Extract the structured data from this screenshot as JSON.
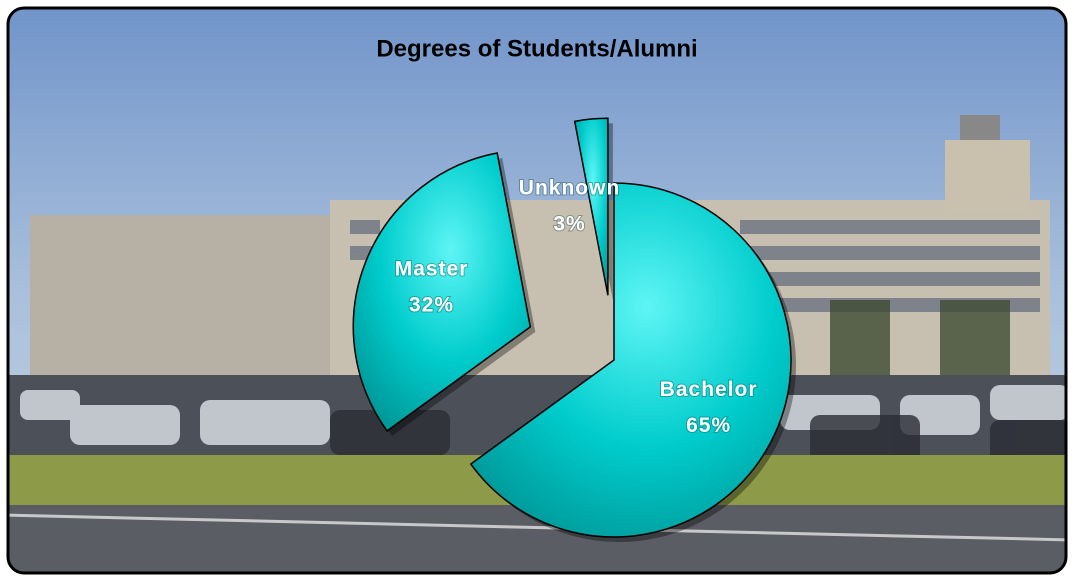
{
  "chart_data": {
    "type": "pie",
    "title": "Degrees of Students/Alumni",
    "categories": [
      "Bachelor",
      "Master",
      "Unknown"
    ],
    "values": [
      65,
      32,
      3
    ],
    "value_labels": [
      "65%",
      "32%",
      "3%"
    ],
    "color": "#00c4c4"
  }
}
